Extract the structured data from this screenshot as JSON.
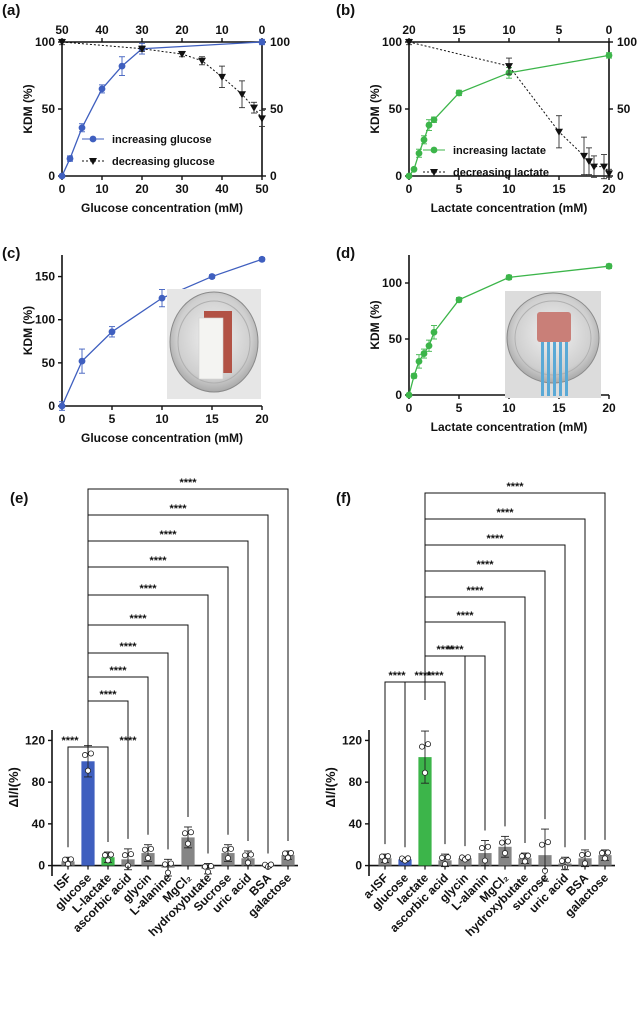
{
  "colors": {
    "blue": "#3F5FBF",
    "green": "#3CB54A",
    "gray": "#858585",
    "black": "#111111"
  },
  "insets": {
    "c": "photo-strip-inset",
    "d": "photo-sensor-inset"
  },
  "chart_data": [
    {
      "panel": "(a)",
      "type": "line",
      "xlabel": "Glucose concentration (mM)",
      "ylabel": "KDM (%)",
      "xlim": [
        0,
        50
      ],
      "ylim": [
        0,
        100
      ],
      "xlim_top": [
        50,
        0
      ],
      "ylim_right": [
        0,
        100
      ],
      "xticks": [
        0,
        10,
        20,
        30,
        40,
        50
      ],
      "yticks": [
        0,
        50,
        100
      ],
      "xticks_top": [
        50,
        40,
        30,
        20,
        10,
        0
      ],
      "yticks_right": [
        0,
        50,
        100
      ],
      "legend_position": "center",
      "series": [
        {
          "name": "increasing glucose",
          "style": "blue-solid-circle",
          "x": [
            0,
            2,
            5,
            10,
            15,
            20,
            50
          ],
          "y": [
            0,
            13,
            36,
            65,
            82,
            95,
            100
          ],
          "err": [
            1,
            2,
            3,
            3,
            7,
            4,
            2
          ]
        },
        {
          "name": "decreasing glucose",
          "style": "black-dotted-triangle",
          "x": [
            0,
            20,
            30,
            35,
            40,
            45,
            48,
            50
          ],
          "y": [
            100,
            95,
            91,
            86,
            74,
            61,
            51,
            43
          ],
          "err": [
            2,
            2,
            2,
            3,
            8,
            10,
            4,
            6
          ]
        }
      ]
    },
    {
      "panel": "(b)",
      "type": "line",
      "xlabel": "Lactate concentration (mM)",
      "ylabel": "KDM (%)",
      "xlim": [
        0,
        20
      ],
      "ylim": [
        0,
        100
      ],
      "xlim_top": [
        20,
        0
      ],
      "ylim_right": [
        0,
        100
      ],
      "xticks": [
        0,
        5,
        10,
        15,
        20
      ],
      "yticks": [
        0,
        50,
        100
      ],
      "xticks_top": [
        20,
        15,
        10,
        5,
        0
      ],
      "yticks_right": [
        0,
        50,
        100
      ],
      "legend_position": "center-right",
      "series": [
        {
          "name": "increasing lactate",
          "style": "green-solid-circle",
          "x": [
            0,
            0.5,
            1,
            1.5,
            2,
            2.5,
            5,
            10,
            20
          ],
          "y": [
            0,
            5,
            17,
            27,
            38,
            42,
            62,
            77,
            90
          ],
          "err": [
            1,
            1,
            3,
            3,
            4,
            2,
            2,
            4,
            2
          ]
        },
        {
          "name": "decreasing lactate",
          "style": "black-dotted-triangle",
          "x": [
            0,
            10,
            15,
            17.5,
            18,
            18.5,
            19.5,
            20
          ],
          "y": [
            100,
            82,
            33,
            15,
            11,
            7,
            7,
            2
          ],
          "err": [
            2,
            6,
            12,
            14,
            10,
            8,
            9,
            3
          ]
        }
      ]
    },
    {
      "panel": "(c)",
      "type": "line",
      "xlabel": "Glucose concentration (mM)",
      "ylabel": "KDM (%)",
      "xlim": [
        0,
        20
      ],
      "ylim": [
        0,
        175
      ],
      "xticks": [
        0,
        5,
        10,
        15,
        20
      ],
      "yticks": [
        0,
        50,
        100,
        150
      ],
      "series": [
        {
          "style": "blue-solid-circle",
          "x": [
            0,
            2,
            5,
            10,
            15,
            20
          ],
          "y": [
            0,
            52,
            86,
            125,
            150,
            170
          ],
          "err": [
            5,
            14,
            6,
            10,
            2,
            2
          ]
        }
      ]
    },
    {
      "panel": "(d)",
      "type": "line",
      "xlabel": "Lactate concentration (mM)",
      "ylabel": "KDM (%)",
      "xlim": [
        0,
        20
      ],
      "ylim": [
        0,
        125
      ],
      "xticks": [
        0,
        5,
        10,
        15,
        20
      ],
      "yticks": [
        0,
        50,
        100
      ],
      "series": [
        {
          "style": "green-solid-circle",
          "x": [
            0,
            0.5,
            1,
            1.5,
            2,
            2.5,
            5,
            10,
            20
          ],
          "y": [
            0,
            17,
            30,
            37,
            44,
            56,
            85,
            105,
            115
          ],
          "err": [
            1,
            2,
            6,
            4,
            5,
            6,
            2,
            2,
            2
          ]
        }
      ]
    },
    {
      "panel": "(e)",
      "type": "bar",
      "ylabel": "ΔI/I(%)",
      "ylim": [
        -10,
        130
      ],
      "yticks": [
        0,
        40,
        80,
        120
      ],
      "categories": [
        "ISF",
        "glucose",
        "L-lactate",
        "ascorbic acid",
        "glycin",
        "L-alanine",
        "MgCl₂",
        "hydroxybutate",
        "Sucrose",
        "uric acid",
        "BSA",
        "galactose"
      ],
      "values": [
        4,
        100,
        8,
        6,
        12,
        -2,
        27,
        -3,
        12,
        7,
        0,
        10
      ],
      "errors": [
        4,
        15,
        5,
        10,
        8,
        8,
        10,
        5,
        8,
        7,
        2,
        4
      ],
      "bar_colors": [
        "gray",
        "blue",
        "green",
        "gray",
        "gray",
        "gray",
        "gray",
        "gray",
        "gray",
        "gray",
        "gray",
        "gray"
      ],
      "significance": "****",
      "brackets": [
        {
          "from": "ISF",
          "to": "glucose",
          "label": "****"
        },
        {
          "from": "glucose",
          "to": "L-lactate",
          "label": "****"
        },
        {
          "from": "glucose",
          "to": "ascorbic acid",
          "label": "****"
        },
        {
          "from": "glucose",
          "to": "glycin",
          "label": "****"
        },
        {
          "from": "glucose",
          "to": "L-alanine",
          "label": "****"
        },
        {
          "from": "glucose",
          "to": "MgCl₂",
          "label": "****"
        },
        {
          "from": "glucose",
          "to": "hydroxybutate",
          "label": "****"
        },
        {
          "from": "glucose",
          "to": "Sucrose",
          "label": "****"
        },
        {
          "from": "glucose",
          "to": "uric acid",
          "label": "****"
        },
        {
          "from": "glucose",
          "to": "BSA",
          "label": "****"
        },
        {
          "from": "glucose",
          "to": "galactose",
          "label": "****"
        }
      ]
    },
    {
      "panel": "(f)",
      "type": "bar",
      "ylabel": "ΔI/I(%)",
      "ylim": [
        -10,
        130
      ],
      "yticks": [
        0,
        40,
        80,
        120
      ],
      "categories": [
        "a-ISF",
        "glucose",
        "lactate",
        "ascorbic acid",
        "glycin",
        "L-alanin",
        "MgCl₂",
        "hydroxybutate",
        "sucrose",
        "uric acid",
        "BSA",
        "galactose"
      ],
      "values": [
        7,
        6,
        104,
        5,
        7,
        12,
        18,
        7,
        10,
        2,
        7,
        10
      ],
      "errors": [
        4,
        2,
        25,
        6,
        2,
        12,
        10,
        5,
        25,
        6,
        8,
        5
      ],
      "bar_colors": [
        "gray",
        "blue",
        "green",
        "gray",
        "gray",
        "gray",
        "gray",
        "gray",
        "gray",
        "gray",
        "gray",
        "gray"
      ],
      "significance": "****",
      "brackets": [
        {
          "from": "a-ISF",
          "to": "lactate",
          "label": "****"
        },
        {
          "from": "glucose",
          "to": "lactate",
          "label": "****"
        },
        {
          "from": "lactate",
          "to": "ascorbic acid",
          "label": "****"
        },
        {
          "from": "lactate",
          "to": "glycin",
          "label": "****"
        },
        {
          "from": "lactate",
          "to": "L-alanin",
          "label": "****"
        },
        {
          "from": "lactate",
          "to": "MgCl₂",
          "label": "****"
        },
        {
          "from": "lactate",
          "to": "hydroxybutate",
          "label": "****"
        },
        {
          "from": "lactate",
          "to": "sucrose",
          "label": "****"
        },
        {
          "from": "lactate",
          "to": "uric acid",
          "label": "****"
        },
        {
          "from": "lactate",
          "to": "BSA",
          "label": "****"
        },
        {
          "from": "lactate",
          "to": "galactose",
          "label": "****"
        }
      ]
    }
  ]
}
